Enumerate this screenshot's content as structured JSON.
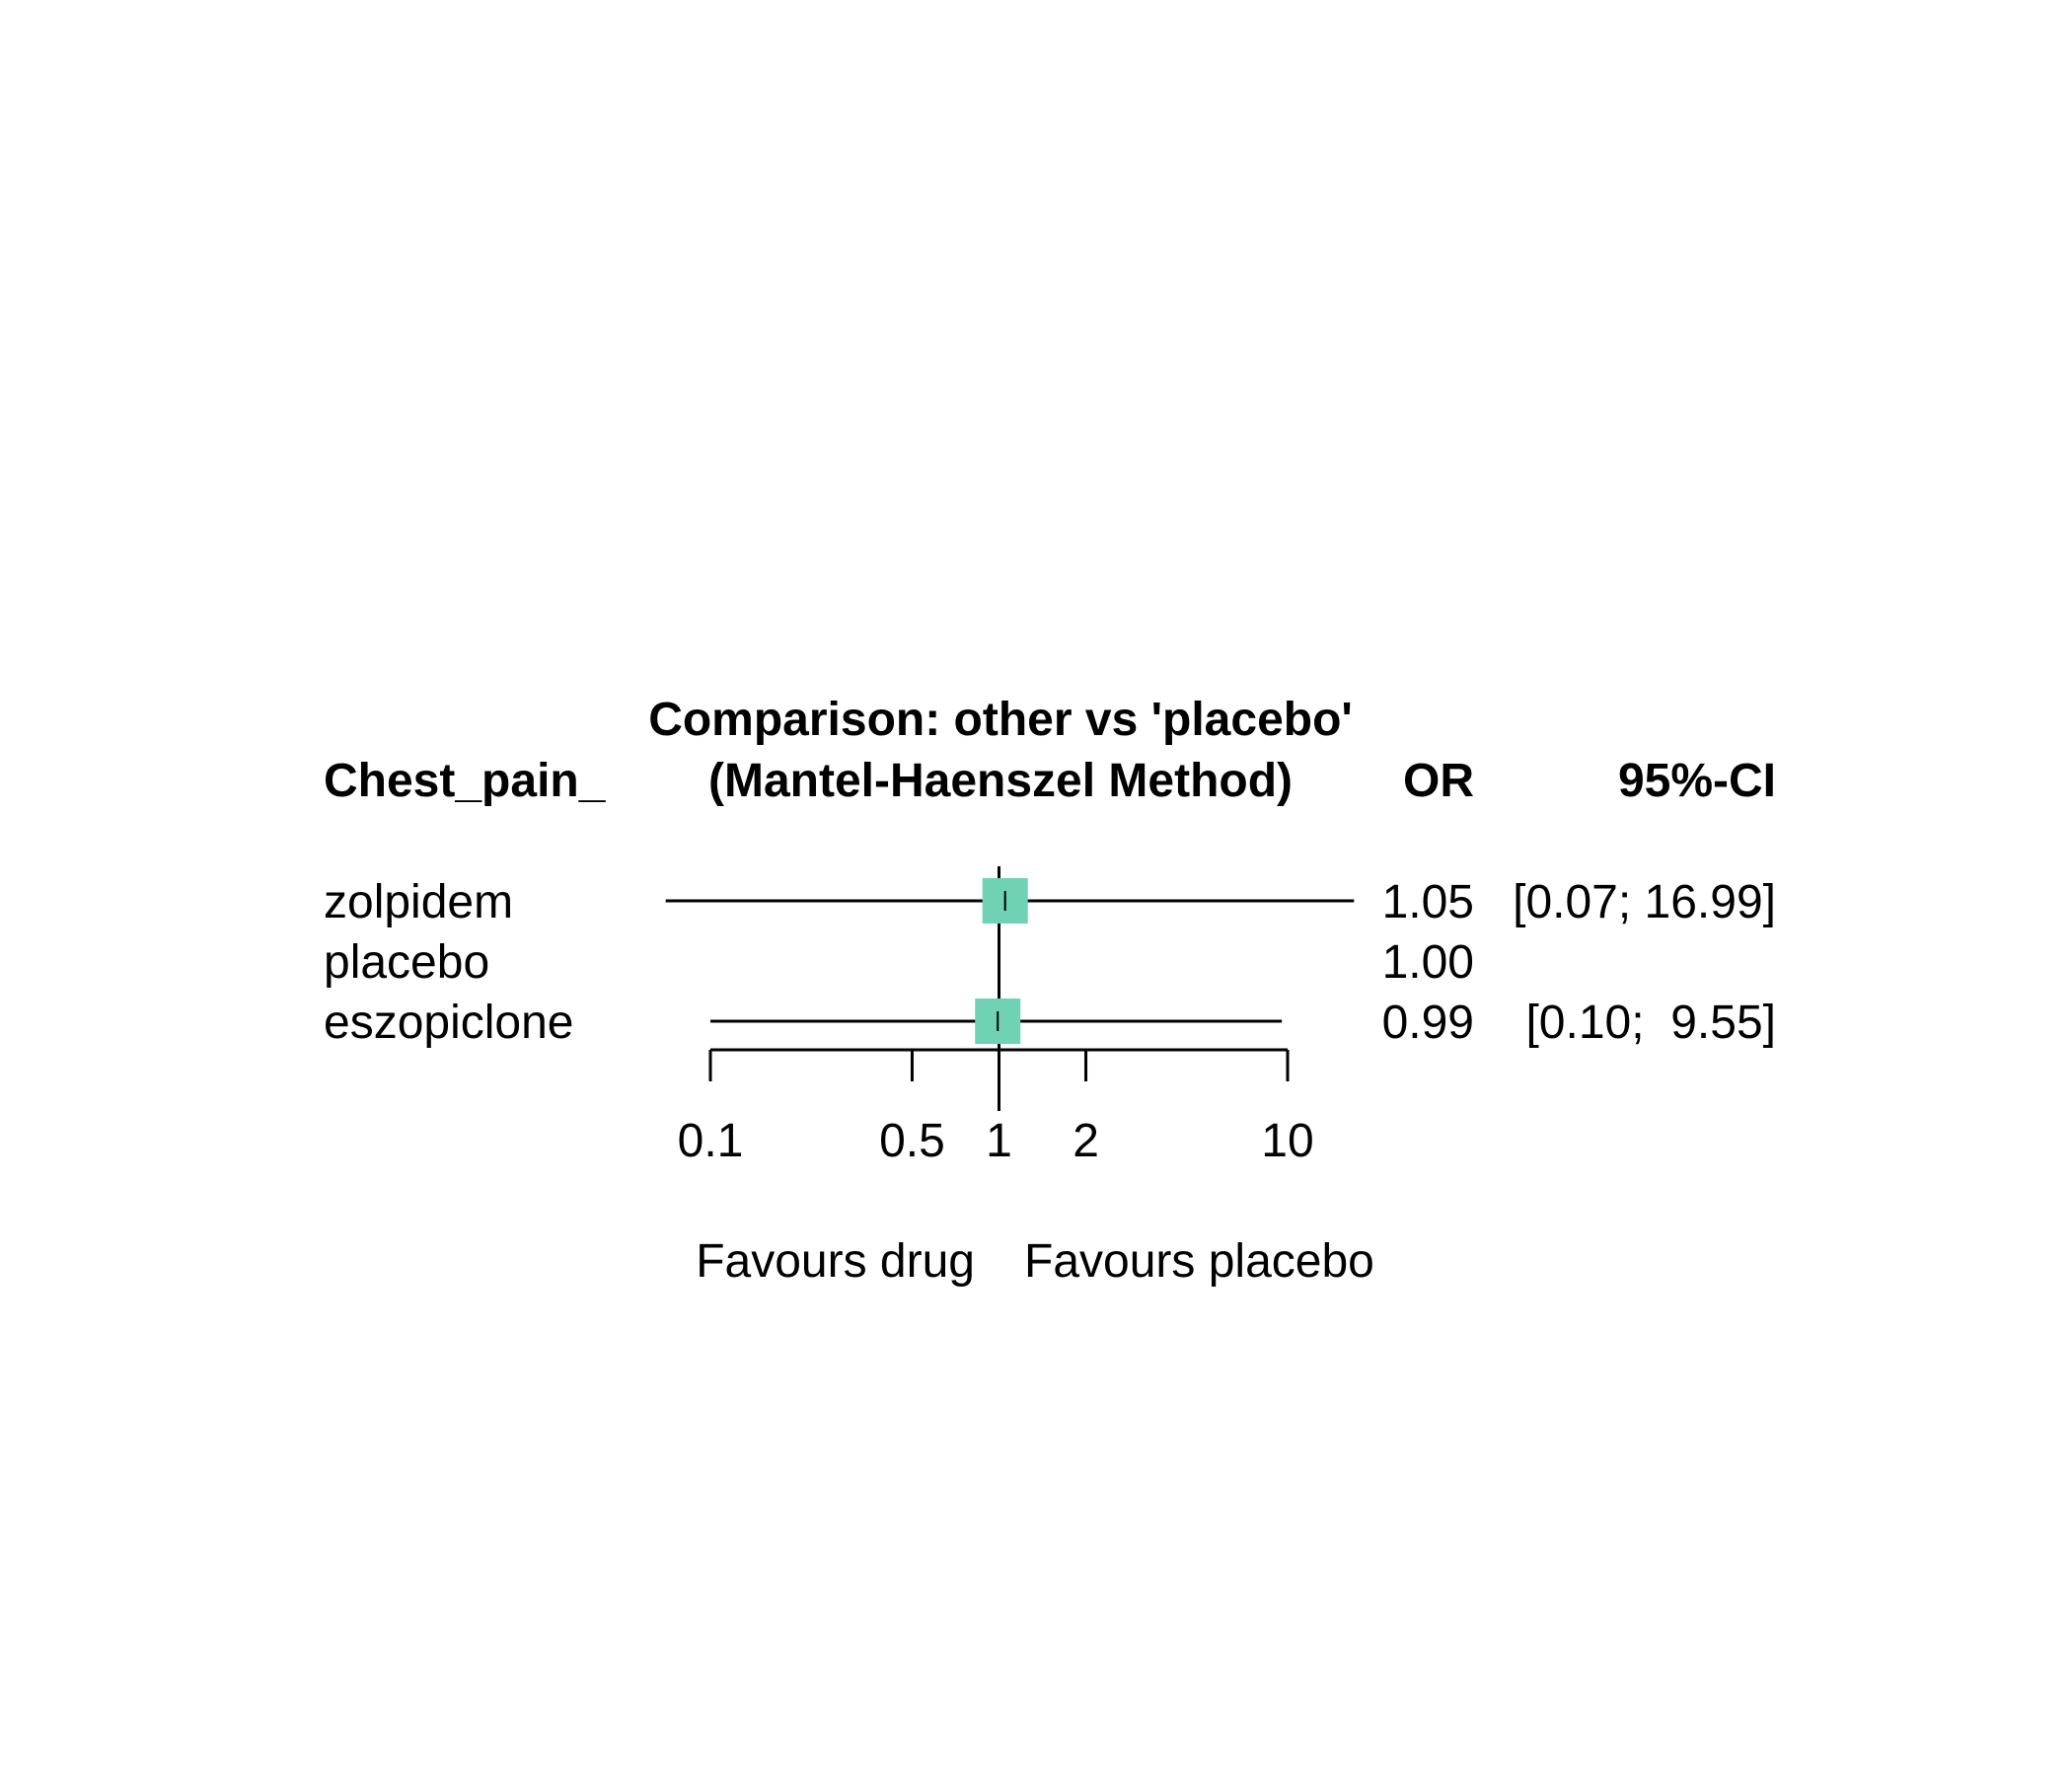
{
  "chart_data": {
    "type": "forest",
    "title_line1": "Comparison: other vs 'placebo'",
    "title_line2": "(Mantel-Haenszel Method)",
    "column_headers": {
      "label": "Chest_pain_",
      "estimate": "OR",
      "ci": "95%-CI"
    },
    "rows": [
      {
        "label": "zolpidem",
        "or": 1.05,
        "lower": 0.07,
        "upper": 16.99,
        "or_text": "1.05",
        "ci_text": "[0.07; 16.99]",
        "has_box": true,
        "box_weight": 1.0
      },
      {
        "label": "placebo",
        "or": 1.0,
        "lower": null,
        "upper": null,
        "or_text": "1.00",
        "ci_text": "",
        "has_box": false,
        "box_weight": 0
      },
      {
        "label": "eszopiclone",
        "or": 0.99,
        "lower": 0.1,
        "upper": 9.55,
        "or_text": "0.99",
        "ci_text": "[0.10;  9.55]",
        "has_box": true,
        "box_weight": 1.0
      }
    ],
    "x_axis": {
      "scale": "log",
      "range": [
        0.1,
        10
      ],
      "ticks": [
        0.1,
        0.5,
        1,
        2,
        10
      ],
      "tick_labels": [
        "0.1",
        "0.5",
        "1",
        "2",
        "10"
      ],
      "reference_line": 1
    },
    "favours_left": "Favours drug",
    "favours_right": "Favours placebo",
    "colors": {
      "box": "#6fd2b4",
      "line": "#000000"
    }
  }
}
